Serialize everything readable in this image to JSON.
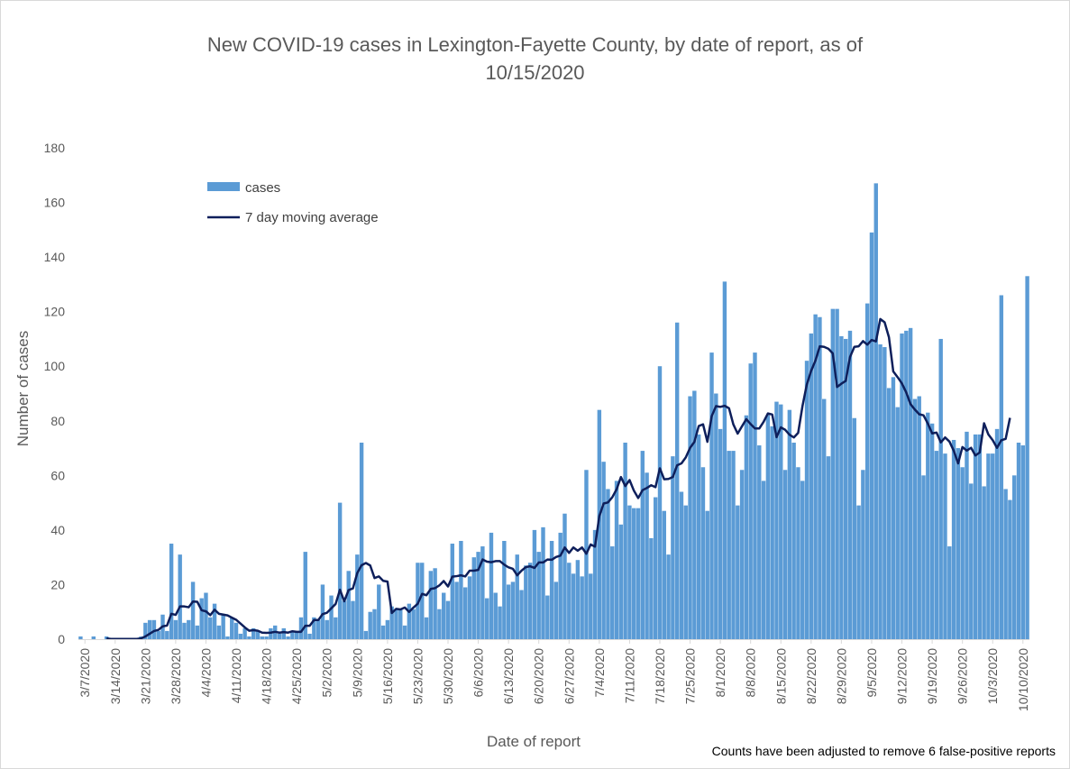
{
  "chart_data": {
    "type": "bar",
    "title": "New COVID-19 cases in Lexington-Fayette County, by date of report, as of\n10/15/2020",
    "xlabel": "Date of report",
    "ylabel": "Number of cases",
    "ylim": [
      0,
      180
    ],
    "yticks": [
      0,
      20,
      40,
      60,
      80,
      100,
      120,
      140,
      160,
      180
    ],
    "xstart": "3/6/2020",
    "xticks": [
      "3/7/2020",
      "3/14/2020",
      "3/21/2020",
      "3/28/2020",
      "4/4/2020",
      "4/11/2020",
      "4/18/2020",
      "4/25/2020",
      "5/2/2020",
      "5/9/2020",
      "5/16/2020",
      "5/23/2020",
      "5/30/2020",
      "6/6/2020",
      "6/13/2020",
      "6/20/2020",
      "6/27/2020",
      "7/4/2020",
      "7/11/2020",
      "7/18/2020",
      "7/25/2020",
      "8/1/2020",
      "8/8/2020",
      "8/15/2020",
      "8/22/2020",
      "8/29/2020",
      "9/5/2020",
      "9/12/2020",
      "9/19/2020",
      "9/26/2020",
      "10/3/2020",
      "10/10/2020"
    ],
    "legend": "top-left",
    "grid": false,
    "series": [
      {
        "name": "cases",
        "type": "bar",
        "color": "#5b9bd5",
        "values": [
          1,
          0,
          0,
          1,
          0,
          0,
          1,
          0,
          0,
          0,
          0,
          0,
          0,
          0,
          1,
          6,
          7,
          7,
          3,
          9,
          3,
          35,
          7,
          31,
          6,
          7,
          21,
          5,
          15,
          17,
          8,
          13,
          5,
          9,
          1,
          8,
          6,
          2,
          4,
          1,
          4,
          3,
          1,
          1,
          4,
          5,
          2,
          4,
          1,
          3,
          3,
          8,
          32,
          2,
          8,
          7,
          20,
          7,
          16,
          8,
          50,
          14,
          25,
          14,
          31,
          72,
          3,
          10,
          11,
          20,
          5,
          7,
          12,
          11,
          11,
          5,
          13,
          11,
          28,
          28,
          8,
          25,
          26,
          11,
          17,
          14,
          35,
          21,
          36,
          19,
          23,
          30,
          32,
          34,
          15,
          39,
          17,
          12,
          36,
          20,
          21,
          31,
          18,
          27,
          28,
          40,
          32,
          41,
          16,
          36,
          21,
          39,
          46,
          28,
          24,
          29,
          23,
          62,
          24,
          40,
          84,
          65,
          55,
          34,
          58,
          42,
          72,
          49,
          48,
          48,
          69,
          61,
          37,
          52,
          100,
          47,
          31,
          67,
          116,
          54,
          49,
          89,
          91,
          75,
          63,
          47,
          105,
          90,
          77,
          131,
          69,
          69,
          49,
          62,
          82,
          101,
          105,
          71,
          58,
          82,
          78,
          87,
          86,
          62,
          84,
          72,
          63,
          58,
          102,
          112,
          119,
          118,
          88,
          67,
          121,
          121,
          111,
          110,
          113,
          81,
          49,
          62,
          123,
          149,
          167,
          108,
          107,
          92,
          96,
          85,
          112,
          113,
          114,
          88,
          89,
          60,
          83,
          79,
          69,
          110,
          68,
          34,
          73,
          70,
          63,
          76,
          57,
          75,
          75,
          56,
          68,
          68,
          77,
          126,
          55,
          51,
          60,
          72,
          71,
          133
        ]
      },
      {
        "name": "7 day moving average",
        "type": "line",
        "color": "#0e1f5b",
        "values": [
          null,
          null,
          null,
          null,
          null,
          null,
          0.3,
          0.1,
          0.1,
          0.1,
          0.1,
          0.1,
          0.1,
          0.1,
          0.3,
          1.0,
          2.0,
          3.0,
          3.4,
          4.7,
          5.0,
          9.3,
          8.9,
          12.0,
          12.0,
          11.7,
          13.8,
          13.7,
          10.6,
          10.2,
          8.8,
          10.8,
          9.3,
          9.0,
          8.7,
          7.9,
          7.1,
          5.7,
          4.3,
          3.1,
          3.3,
          3.1,
          2.4,
          2.3,
          2.4,
          2.7,
          2.4,
          2.6,
          2.4,
          2.9,
          2.7,
          2.7,
          4.9,
          4.9,
          7.0,
          7.0,
          9.2,
          9.7,
          11.3,
          12.9,
          18.1,
          13.9,
          18.0,
          18.6,
          24.2,
          27.1,
          27.9,
          27.0,
          22.4,
          23.0,
          21.4,
          21.1,
          9.6,
          11.1,
          10.9,
          11.6,
          10.0,
          11.6,
          13.0,
          16.6,
          16.1,
          18.4,
          18.7,
          19.7,
          21.3,
          19.3,
          22.9,
          23.1,
          23.4,
          23.0,
          25.1,
          25.1,
          25.4,
          29.2,
          28.4,
          28.2,
          28.6,
          28.6,
          27.3,
          26.3,
          25.8,
          23.4,
          25.1,
          26.4,
          26.7,
          26.1,
          28.1,
          28.1,
          29.2,
          29.1,
          30.1,
          30.6,
          33.6,
          31.6,
          33.6,
          32.4,
          33.6,
          31.3,
          34.7,
          33.9,
          45.1,
          49.7,
          50.1,
          52.0,
          54.9,
          59.4,
          56.1,
          58.3,
          54.4,
          51.7,
          54.6,
          55.4,
          56.4,
          55.7,
          62.6,
          58.6,
          58.7,
          59.4,
          63.7,
          64.4,
          66.6,
          70.1,
          72.3,
          78.1,
          78.7,
          72.3,
          81.7,
          85.4,
          85.1,
          85.5,
          84.6,
          78.7,
          75.3,
          78.0,
          80.6,
          78.8,
          77.2,
          77.2,
          79.6,
          82.7,
          82.3,
          74.0,
          77.6,
          76.7,
          74.9,
          73.9,
          75.6,
          85.4,
          93.3,
          98.3,
          102.1,
          107.3,
          107.1,
          106.4,
          104.7,
          92.4,
          93.6,
          94.6,
          103.4,
          107.1,
          107.3,
          109.2,
          107.9,
          109.6,
          109.1,
          117.3,
          116.1,
          110.6,
          98.1,
          96.0,
          93.7,
          90.4,
          86.1,
          84.1,
          82.4,
          82.0,
          79.0,
          75.4,
          75.7,
          72.1,
          73.9,
          72.4,
          69.0,
          64.4,
          70.4,
          69.1,
          70.1,
          67.3,
          68.4,
          79.1,
          75.0,
          72.9,
          70.1,
          72.9,
          73.4,
          81.1
        ]
      }
    ]
  },
  "footnote": "Counts have been adjusted to remove 6 false-positive reports"
}
